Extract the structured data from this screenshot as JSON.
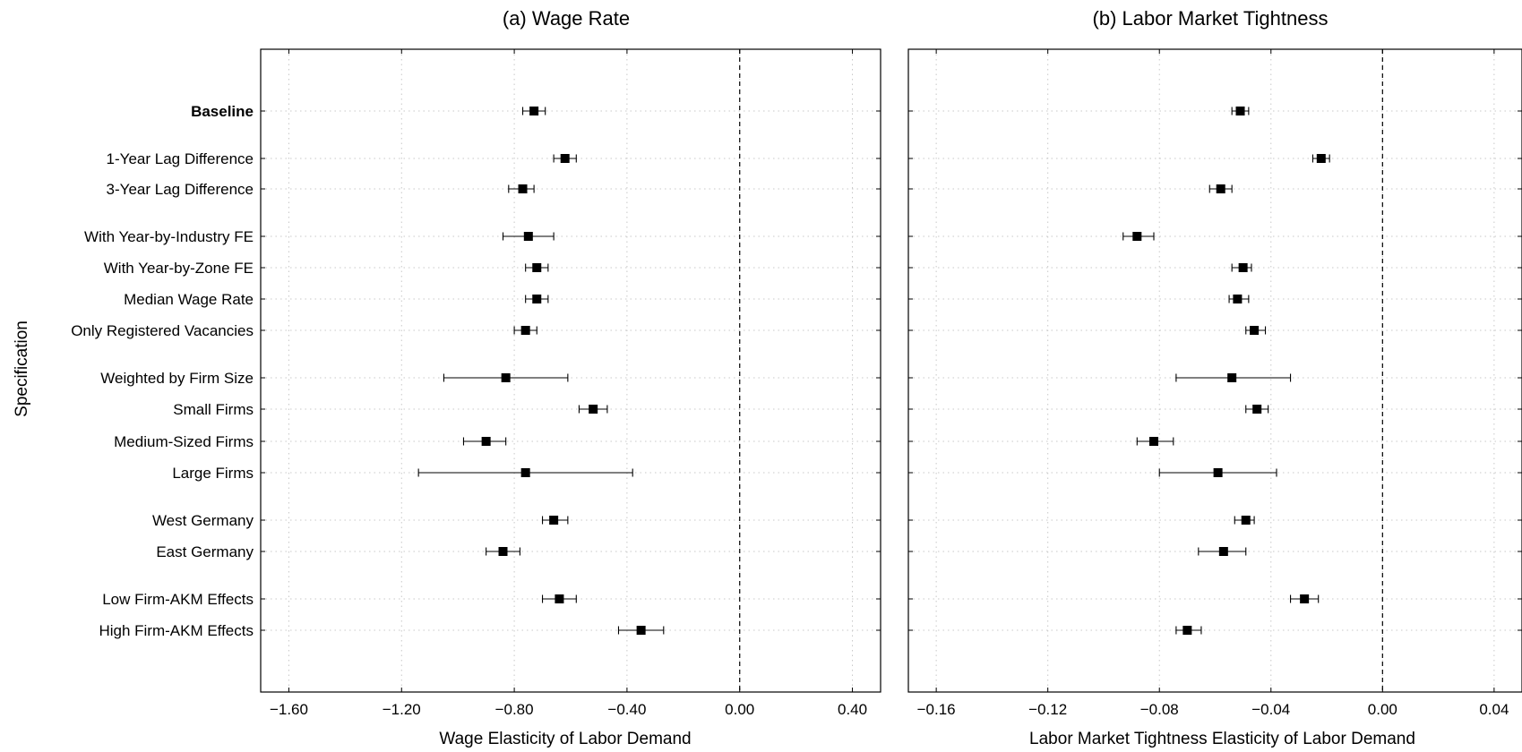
{
  "chart_data": [
    {
      "type": "scatter",
      "title": "(a) Wage Rate",
      "xlabel": "Wage Elasticity of Labor Demand",
      "ylabel": "Specification",
      "xlim": [
        -1.7,
        0.5
      ],
      "xticks": [
        -1.6,
        -1.2,
        -0.8,
        -0.4,
        0.0,
        0.4
      ],
      "xtick_labels": [
        "−1.60",
        "−1.20",
        "−0.80",
        "−0.40",
        "0.00",
        "0.40"
      ],
      "reference_line_x": 0.0,
      "grid": true,
      "points": [
        {
          "label": "Baseline",
          "bold": true,
          "estimate": -0.73,
          "ci_low": -0.77,
          "ci_high": -0.69
        },
        {
          "label": "1-Year Lag Difference",
          "estimate": -0.62,
          "ci_low": -0.66,
          "ci_high": -0.58
        },
        {
          "label": "3-Year Lag Difference",
          "estimate": -0.77,
          "ci_low": -0.82,
          "ci_high": -0.73
        },
        {
          "label": "With Year-by-Industry FE",
          "estimate": -0.75,
          "ci_low": -0.84,
          "ci_high": -0.66
        },
        {
          "label": "With Year-by-Zone FE",
          "estimate": -0.72,
          "ci_low": -0.76,
          "ci_high": -0.68
        },
        {
          "label": "Median Wage Rate",
          "estimate": -0.72,
          "ci_low": -0.76,
          "ci_high": -0.68
        },
        {
          "label": "Only Registered Vacancies",
          "estimate": -0.76,
          "ci_low": -0.8,
          "ci_high": -0.72
        },
        {
          "label": "Weighted by Firm Size",
          "estimate": -0.83,
          "ci_low": -1.05,
          "ci_high": -0.61
        },
        {
          "label": "Small Firms",
          "estimate": -0.52,
          "ci_low": -0.57,
          "ci_high": -0.47
        },
        {
          "label": "Medium-Sized Firms",
          "estimate": -0.9,
          "ci_low": -0.98,
          "ci_high": -0.83
        },
        {
          "label": "Large Firms",
          "estimate": -0.76,
          "ci_low": -1.14,
          "ci_high": -0.38
        },
        {
          "label": "West Germany",
          "estimate": -0.66,
          "ci_low": -0.7,
          "ci_high": -0.61
        },
        {
          "label": "East Germany",
          "estimate": -0.84,
          "ci_low": -0.9,
          "ci_high": -0.78
        },
        {
          "label": "Low Firm-AKM Effects",
          "estimate": -0.64,
          "ci_low": -0.7,
          "ci_high": -0.58
        },
        {
          "label": "High Firm-AKM Effects",
          "estimate": -0.35,
          "ci_low": -0.43,
          "ci_high": -0.27
        }
      ]
    },
    {
      "type": "scatter",
      "title": "(b) Labor Market Tightness",
      "xlabel": "Labor Market Tightness Elasticity of Labor Demand",
      "xlim": [
        -0.17,
        0.05
      ],
      "xticks": [
        -0.16,
        -0.12,
        -0.08,
        -0.04,
        0.0,
        0.04
      ],
      "xtick_labels": [
        "−0.16",
        "−0.12",
        "−0.08",
        "−0.04",
        "0.00",
        "0.04"
      ],
      "reference_line_x": 0.0,
      "grid": true,
      "points": [
        {
          "label": "Baseline",
          "estimate": -0.051,
          "ci_low": -0.054,
          "ci_high": -0.048
        },
        {
          "label": "1-Year Lag Difference",
          "estimate": -0.022,
          "ci_low": -0.025,
          "ci_high": -0.019
        },
        {
          "label": "3-Year Lag Difference",
          "estimate": -0.058,
          "ci_low": -0.062,
          "ci_high": -0.054
        },
        {
          "label": "With Year-by-Industry FE",
          "estimate": -0.088,
          "ci_low": -0.093,
          "ci_high": -0.082
        },
        {
          "label": "With Year-by-Zone FE",
          "estimate": -0.05,
          "ci_low": -0.054,
          "ci_high": -0.047
        },
        {
          "label": "Median Wage Rate",
          "estimate": -0.052,
          "ci_low": -0.055,
          "ci_high": -0.048
        },
        {
          "label": "Only Registered Vacancies",
          "estimate": -0.046,
          "ci_low": -0.049,
          "ci_high": -0.042
        },
        {
          "label": "Weighted by Firm Size",
          "estimate": -0.054,
          "ci_low": -0.074,
          "ci_high": -0.033
        },
        {
          "label": "Small Firms",
          "estimate": -0.045,
          "ci_low": -0.049,
          "ci_high": -0.041
        },
        {
          "label": "Medium-Sized Firms",
          "estimate": -0.082,
          "ci_low": -0.088,
          "ci_high": -0.075
        },
        {
          "label": "Large Firms",
          "estimate": -0.059,
          "ci_low": -0.08,
          "ci_high": -0.038
        },
        {
          "label": "West Germany",
          "estimate": -0.049,
          "ci_low": -0.053,
          "ci_high": -0.046
        },
        {
          "label": "East Germany",
          "estimate": -0.057,
          "ci_low": -0.066,
          "ci_high": -0.049
        },
        {
          "label": "Low Firm-AKM Effects",
          "estimate": -0.028,
          "ci_low": -0.033,
          "ci_high": -0.023
        },
        {
          "label": "High Firm-AKM Effects",
          "estimate": -0.07,
          "ci_low": -0.074,
          "ci_high": -0.065
        }
      ]
    }
  ]
}
